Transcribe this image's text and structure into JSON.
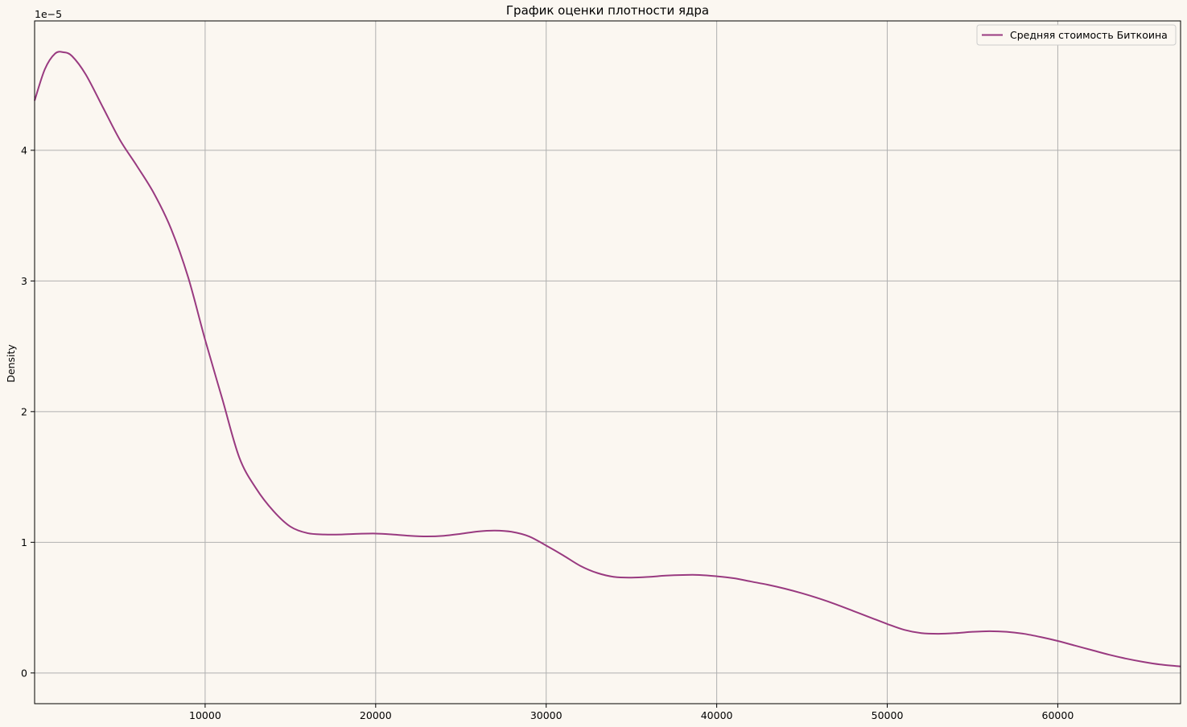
{
  "chart_data": {
    "type": "line",
    "title": "График оценки плотности ядра",
    "xlabel": "",
    "ylabel": "Density",
    "y_scale_label": "1e−5",
    "xlim": [
      0,
      67200
    ],
    "ylim": [
      -0.235,
      4.99
    ],
    "x_ticks": [
      10000,
      20000,
      30000,
      40000,
      50000,
      60000
    ],
    "y_ticks": [
      0,
      1,
      2,
      3,
      4
    ],
    "grid": true,
    "legend_position": "top-right",
    "series": [
      {
        "name": "Средняя стоимость Биткоина",
        "color": "#993a80",
        "x": [
          0,
          600,
          1200,
          1700,
          2200,
          3000,
          4000,
          5000,
          6000,
          7000,
          8000,
          9000,
          10000,
          11000,
          12000,
          13000,
          14000,
          15000,
          16000,
          17000,
          18000,
          19000,
          20000,
          21000,
          22000,
          23000,
          24000,
          25000,
          26000,
          27000,
          28000,
          29000,
          30000,
          31000,
          32000,
          33000,
          34000,
          35000,
          36000,
          37000,
          38000,
          39000,
          40000,
          41000,
          42000,
          43000,
          44000,
          45000,
          46000,
          47000,
          48000,
          49000,
          50000,
          51000,
          52000,
          53000,
          54000,
          55000,
          56000,
          57000,
          58000,
          59000,
          60000,
          61000,
          62000,
          63000,
          64000,
          65000,
          66000,
          67200
        ],
        "values": [
          4.38,
          4.62,
          4.74,
          4.75,
          4.72,
          4.58,
          4.33,
          4.08,
          3.88,
          3.67,
          3.4,
          3.03,
          2.55,
          2.1,
          1.65,
          1.41,
          1.24,
          1.12,
          1.07,
          1.06,
          1.06,
          1.065,
          1.067,
          1.06,
          1.05,
          1.045,
          1.05,
          1.065,
          1.083,
          1.09,
          1.08,
          1.045,
          0.975,
          0.9,
          0.82,
          0.765,
          0.735,
          0.73,
          0.735,
          0.745,
          0.75,
          0.75,
          0.74,
          0.725,
          0.7,
          0.675,
          0.645,
          0.61,
          0.57,
          0.525,
          0.475,
          0.425,
          0.375,
          0.33,
          0.305,
          0.3,
          0.305,
          0.315,
          0.32,
          0.315,
          0.3,
          0.275,
          0.245,
          0.21,
          0.175,
          0.14,
          0.11,
          0.085,
          0.065,
          0.05
        ]
      }
    ]
  }
}
